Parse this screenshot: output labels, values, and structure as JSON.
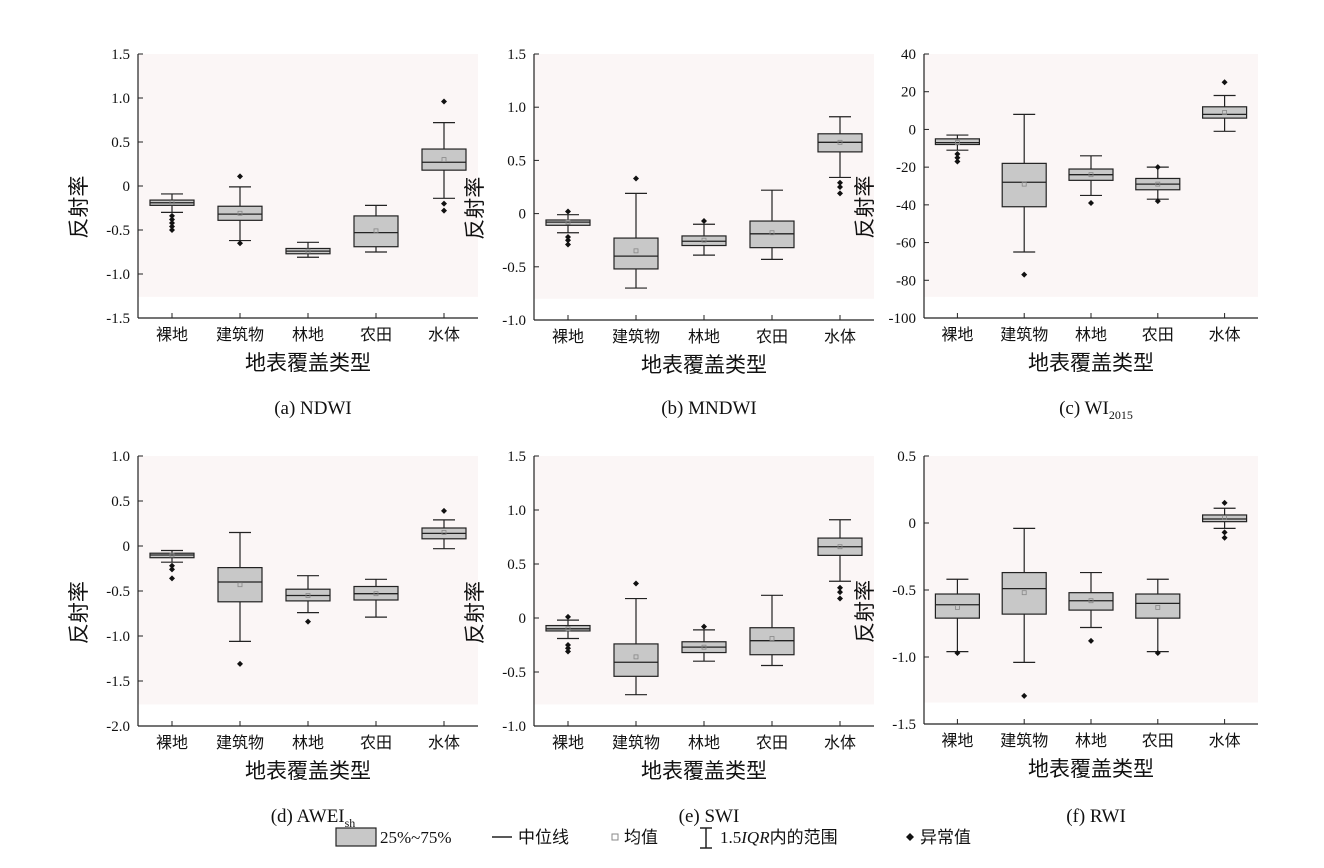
{
  "chart_data": [
    {
      "type": "box",
      "caption": "(a)  NDWI",
      "xlabel": "地表覆盖类型",
      "ylabel": "反射率",
      "ylim": [
        -1.5,
        1.5
      ],
      "yticks": [
        "1.5",
        "1.0",
        "0.5",
        "0",
        "-0.5",
        "-1.0",
        "-1.5"
      ],
      "categories": [
        "裸地",
        "建筑物",
        "林地",
        "农田",
        "水体"
      ],
      "boxes": [
        {
          "whisker_low": -0.3,
          "q1": -0.22,
          "median": -0.19,
          "q3": -0.16,
          "whisker_high": -0.09,
          "mean": -0.19,
          "outliers": [
            -0.34,
            -0.38,
            -0.42,
            -0.46,
            -0.5
          ]
        },
        {
          "whisker_low": -0.62,
          "q1": -0.39,
          "median": -0.32,
          "q3": -0.23,
          "whisker_high": -0.01,
          "mean": -0.31,
          "outliers": [
            0.11,
            -0.65
          ]
        },
        {
          "whisker_low": -0.81,
          "q1": -0.77,
          "median": -0.74,
          "q3": -0.71,
          "whisker_high": -0.64,
          "mean": -0.74,
          "outliers": []
        },
        {
          "whisker_low": -0.75,
          "q1": -0.69,
          "median": -0.53,
          "q3": -0.34,
          "whisker_high": -0.22,
          "mean": -0.51,
          "outliers": []
        },
        {
          "whisker_low": -0.14,
          "q1": 0.18,
          "median": 0.27,
          "q3": 0.42,
          "whisker_high": 0.72,
          "mean": 0.3,
          "outliers": [
            0.96,
            -0.2,
            -0.28
          ]
        }
      ]
    },
    {
      "type": "box",
      "caption": "(b)  MNDWI",
      "xlabel": "地表覆盖类型",
      "ylabel": "反射率",
      "ylim": [
        -1.0,
        1.5
      ],
      "yticks": [
        "1.5",
        "1.0",
        "0.5",
        "0",
        "-0.5",
        "-1.0"
      ],
      "categories": [
        "裸地",
        "建筑物",
        "林地",
        "农田",
        "水体"
      ],
      "boxes": [
        {
          "whisker_low": -0.18,
          "q1": -0.11,
          "median": -0.08,
          "q3": -0.06,
          "whisker_high": -0.01,
          "mean": -0.08,
          "outliers": [
            0.02,
            -0.22,
            -0.25,
            -0.29
          ]
        },
        {
          "whisker_low": -0.7,
          "q1": -0.52,
          "median": -0.4,
          "q3": -0.23,
          "whisker_high": 0.19,
          "mean": -0.35,
          "outliers": [
            0.33
          ]
        },
        {
          "whisker_low": -0.39,
          "q1": -0.3,
          "median": -0.26,
          "q3": -0.21,
          "whisker_high": -0.1,
          "mean": -0.25,
          "outliers": [
            -0.07
          ]
        },
        {
          "whisker_low": -0.43,
          "q1": -0.32,
          "median": -0.19,
          "q3": -0.07,
          "whisker_high": 0.22,
          "mean": -0.18,
          "outliers": []
        },
        {
          "whisker_low": 0.34,
          "q1": 0.58,
          "median": 0.67,
          "q3": 0.75,
          "whisker_high": 0.91,
          "mean": 0.67,
          "outliers": [
            0.29,
            0.25,
            0.19
          ]
        }
      ]
    },
    {
      "type": "box",
      "caption": "(c)  WI",
      "caption_sub": "2015",
      "xlabel": "地表覆盖类型",
      "ylabel": "反射率",
      "ylim": [
        -100,
        40
      ],
      "yticks": [
        "40",
        "20",
        "0",
        "-20",
        "-40",
        "-60",
        "-80",
        "-100"
      ],
      "categories": [
        "裸地",
        "建筑物",
        "林地",
        "农田",
        "水体"
      ],
      "boxes": [
        {
          "whisker_low": -11,
          "q1": -8,
          "median": -7,
          "q3": -5,
          "whisker_high": -3,
          "mean": -7,
          "outliers": [
            -13,
            -15,
            -17
          ]
        },
        {
          "whisker_low": -65,
          "q1": -41,
          "median": -28,
          "q3": -18,
          "whisker_high": 8,
          "mean": -29,
          "outliers": [
            -77
          ]
        },
        {
          "whisker_low": -35,
          "q1": -27,
          "median": -24,
          "q3": -21,
          "whisker_high": -14,
          "mean": -24,
          "outliers": [
            -39
          ]
        },
        {
          "whisker_low": -37,
          "q1": -32,
          "median": -29,
          "q3": -26,
          "whisker_high": -20,
          "mean": -29,
          "outliers": [
            -20,
            -38
          ]
        },
        {
          "whisker_low": -1,
          "q1": 6,
          "median": 8,
          "q3": 12,
          "whisker_high": 18,
          "mean": 9,
          "outliers": [
            25
          ]
        }
      ]
    },
    {
      "type": "box",
      "caption": "(d)  AWEI",
      "caption_sub": "sh",
      "xlabel": "地表覆盖类型",
      "ylabel": "反射率",
      "ylim": [
        -2.0,
        1.0
      ],
      "yticks": [
        "1.0",
        "0.5",
        "0",
        "-0.5",
        "-1.0",
        "-1.5",
        "-2.0"
      ],
      "categories": [
        "裸地",
        "建筑物",
        "林地",
        "农田",
        "水体"
      ],
      "boxes": [
        {
          "whisker_low": -0.18,
          "q1": -0.13,
          "median": -0.1,
          "q3": -0.08,
          "whisker_high": -0.05,
          "mean": -0.1,
          "outliers": [
            -0.22,
            -0.26,
            -0.36
          ]
        },
        {
          "whisker_low": -1.06,
          "q1": -0.62,
          "median": -0.4,
          "q3": -0.24,
          "whisker_high": 0.15,
          "mean": -0.43,
          "outliers": [
            -1.31
          ]
        },
        {
          "whisker_low": -0.74,
          "q1": -0.61,
          "median": -0.55,
          "q3": -0.48,
          "whisker_high": -0.33,
          "mean": -0.55,
          "outliers": [
            -0.84
          ]
        },
        {
          "whisker_low": -0.79,
          "q1": -0.6,
          "median": -0.53,
          "q3": -0.45,
          "whisker_high": -0.37,
          "mean": -0.53,
          "outliers": []
        },
        {
          "whisker_low": -0.03,
          "q1": 0.08,
          "median": 0.14,
          "q3": 0.2,
          "whisker_high": 0.29,
          "mean": 0.15,
          "outliers": [
            0.39
          ]
        }
      ]
    },
    {
      "type": "box",
      "caption": "(e)  SWI",
      "xlabel": "地表覆盖类型",
      "ylabel": "反射率",
      "ylim": [
        -1.0,
        1.5
      ],
      "yticks": [
        "1.5",
        "1.0",
        "0.5",
        "0",
        "-0.5",
        "-1.0"
      ],
      "categories": [
        "裸地",
        "建筑物",
        "林地",
        "农田",
        "水体"
      ],
      "boxes": [
        {
          "whisker_low": -0.19,
          "q1": -0.12,
          "median": -0.1,
          "q3": -0.07,
          "whisker_high": -0.02,
          "mean": -0.1,
          "outliers": [
            0.01,
            -0.25,
            -0.28,
            -0.31
          ]
        },
        {
          "whisker_low": -0.71,
          "q1": -0.54,
          "median": -0.41,
          "q3": -0.24,
          "whisker_high": 0.18,
          "mean": -0.36,
          "outliers": [
            0.32
          ]
        },
        {
          "whisker_low": -0.4,
          "q1": -0.32,
          "median": -0.27,
          "q3": -0.22,
          "whisker_high": -0.11,
          "mean": -0.27,
          "outliers": [
            -0.08
          ]
        },
        {
          "whisker_low": -0.44,
          "q1": -0.34,
          "median": -0.21,
          "q3": -0.09,
          "whisker_high": 0.21,
          "mean": -0.19,
          "outliers": []
        },
        {
          "whisker_low": 0.34,
          "q1": 0.58,
          "median": 0.66,
          "q3": 0.74,
          "whisker_high": 0.91,
          "mean": 0.66,
          "outliers": [
            0.28,
            0.24,
            0.18
          ]
        }
      ]
    },
    {
      "type": "box",
      "caption": "(f)  RWI",
      "xlabel": "地表覆盖类型",
      "ylabel": "反射率",
      "ylim": [
        -1.5,
        0.5
      ],
      "yticks": [
        "0.5",
        "0",
        "-0.5",
        "-1.0",
        "-1.5"
      ],
      "categories": [
        "裸地",
        "建筑物",
        "林地",
        "农田",
        "水体"
      ],
      "boxes": [
        {
          "whisker_low": -0.96,
          "q1": -0.71,
          "median": -0.61,
          "q3": -0.53,
          "whisker_high": -0.42,
          "mean": -0.63,
          "outliers": [
            -0.97
          ]
        },
        {
          "whisker_low": -1.04,
          "q1": -0.68,
          "median": -0.49,
          "q3": -0.37,
          "whisker_high": -0.04,
          "mean": -0.52,
          "outliers": [
            -1.29
          ]
        },
        {
          "whisker_low": -0.78,
          "q1": -0.65,
          "median": -0.58,
          "q3": -0.52,
          "whisker_high": -0.37,
          "mean": -0.58,
          "outliers": [
            -0.88
          ]
        },
        {
          "whisker_low": -0.96,
          "q1": -0.71,
          "median": -0.6,
          "q3": -0.53,
          "whisker_high": -0.42,
          "mean": -0.63,
          "outliers": [
            -0.97
          ]
        },
        {
          "whisker_low": -0.04,
          "q1": 0.01,
          "median": 0.03,
          "q3": 0.06,
          "whisker_high": 0.11,
          "mean": 0.04,
          "outliers": [
            0.15,
            -0.07,
            -0.11
          ]
        }
      ]
    }
  ],
  "legend": {
    "box_label": "25%~75%",
    "median_label": "中位线",
    "mean_label": "均值",
    "whisker_label_prefix": "1.5",
    "whisker_label_iqr": "IQR",
    "whisker_label_suffix": "内的范围",
    "outlier_label": "异常值"
  },
  "colors": {
    "box_fill": "#c8c8c8",
    "plot_bg": "#fbf6f6",
    "mean_marker": "#888888",
    "line": "#222222"
  }
}
